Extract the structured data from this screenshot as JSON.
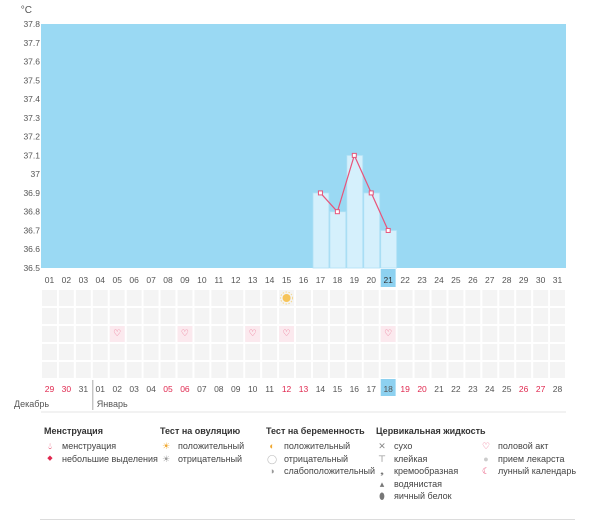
{
  "chart_data": {
    "type": "bar",
    "unit_label": "°C",
    "ylim": [
      36.5,
      37.8
    ],
    "yticks": [
      36.5,
      36.6,
      36.7,
      36.8,
      36.9,
      37,
      37.1,
      37.2,
      37.3,
      37.4,
      37.5,
      37.6,
      37.7,
      37.8
    ],
    "cycle_days": [
      "01",
      "02",
      "03",
      "04",
      "05",
      "06",
      "07",
      "08",
      "09",
      "10",
      "11",
      "12",
      "13",
      "14",
      "15",
      "16",
      "17",
      "18",
      "19",
      "20",
      "21",
      "22",
      "23",
      "24",
      "25",
      "26",
      "27",
      "28",
      "29",
      "30",
      "31"
    ],
    "current_index": 20,
    "temperatures": [
      null,
      null,
      null,
      null,
      null,
      null,
      null,
      null,
      null,
      null,
      null,
      null,
      null,
      null,
      null,
      null,
      36.9,
      36.8,
      37.1,
      36.9,
      36.7,
      null,
      null,
      null,
      null,
      null,
      null,
      null,
      null,
      null,
      null
    ],
    "ovulation_positive_index": 14,
    "sex_indices": [
      4,
      8,
      12,
      14,
      20
    ],
    "calendar_dates": [
      {
        "d": "29",
        "red": true
      },
      {
        "d": "30",
        "red": true
      },
      {
        "d": "31",
        "red": false
      },
      {
        "d": "01",
        "red": false
      },
      {
        "d": "02",
        "red": false
      },
      {
        "d": "03",
        "red": false
      },
      {
        "d": "04",
        "red": false
      },
      {
        "d": "05",
        "red": true
      },
      {
        "d": "06",
        "red": true
      },
      {
        "d": "07",
        "red": false
      },
      {
        "d": "08",
        "red": false
      },
      {
        "d": "09",
        "red": false
      },
      {
        "d": "10",
        "red": false
      },
      {
        "d": "11",
        "red": false
      },
      {
        "d": "12",
        "red": true
      },
      {
        "d": "13",
        "red": true
      },
      {
        "d": "14",
        "red": false
      },
      {
        "d": "15",
        "red": false
      },
      {
        "d": "16",
        "red": false
      },
      {
        "d": "17",
        "red": false
      },
      {
        "d": "18",
        "red": false
      },
      {
        "d": "19",
        "red": true
      },
      {
        "d": "20",
        "red": true
      },
      {
        "d": "21",
        "red": false
      },
      {
        "d": "22",
        "red": false
      },
      {
        "d": "23",
        "red": false
      },
      {
        "d": "24",
        "red": false
      },
      {
        "d": "25",
        "red": false
      },
      {
        "d": "26",
        "red": true
      },
      {
        "d": "27",
        "red": true
      },
      {
        "d": "28",
        "red": false
      }
    ],
    "month_labels": [
      "Декабрь",
      "Январь"
    ],
    "colors": {
      "fill_blue": "#9ad9f3",
      "bar_fill": "#d5f0fc",
      "bar_stroke": "#aee0f5",
      "line": "#e8547a",
      "highlight": "#8dd1f0",
      "red_text": "#e0284f",
      "grid_tile": "#f4f4f4"
    }
  },
  "legend": {
    "menstruation": {
      "title": "Менструация",
      "items": [
        "менструация",
        "небольшие выделения"
      ]
    },
    "ovulation": {
      "title": "Тест на овуляцию",
      "items": [
        "положительный",
        "отрицательный"
      ]
    },
    "pregnancy": {
      "title": "Тест на беременность",
      "items": [
        "положительный",
        "отрицательный",
        "слабоположительный"
      ]
    },
    "cervical": {
      "title": "Цервикальная жидкость",
      "items": [
        "сухо",
        "клейкая",
        "кремообразная",
        "водянистая",
        "яичный белок"
      ]
    },
    "other": {
      "items": [
        "половой акт",
        "прием лекарста",
        "лунный календарь"
      ]
    }
  }
}
